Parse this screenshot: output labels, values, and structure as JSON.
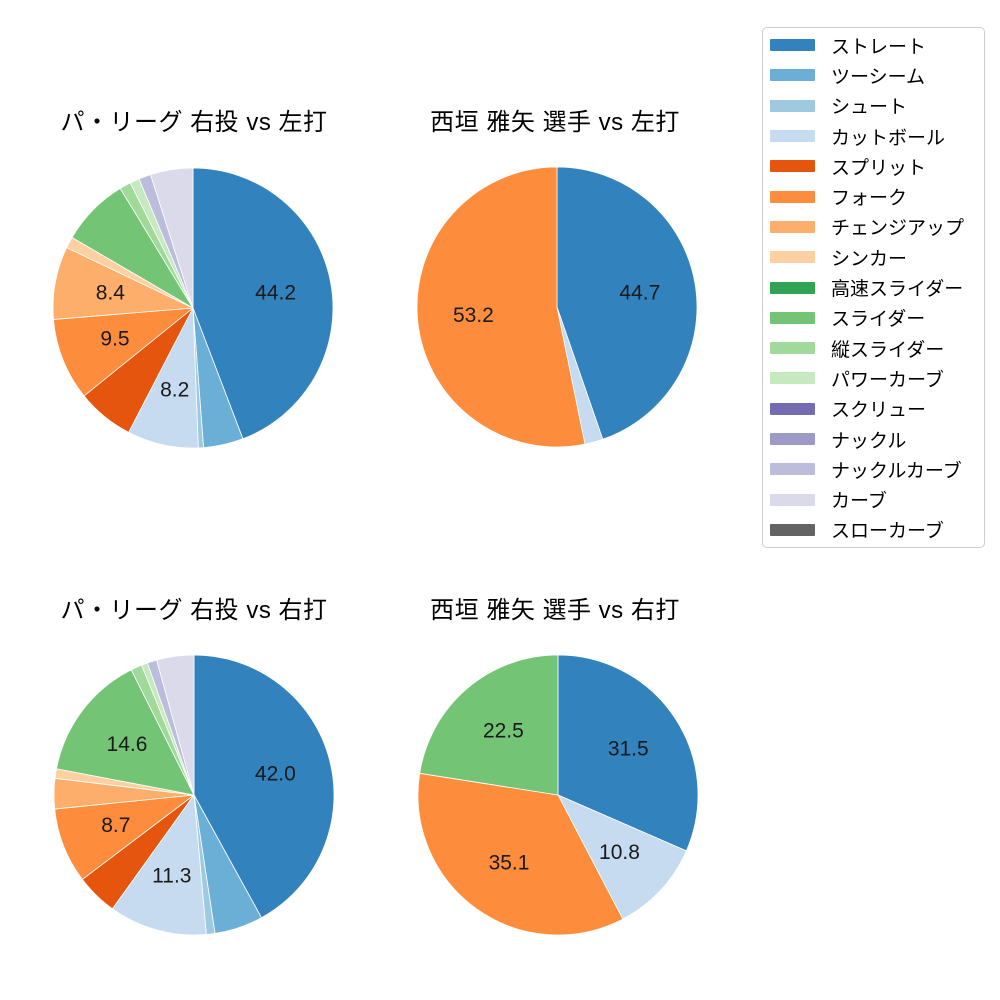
{
  "figure": {
    "background": "#ffffff",
    "title_color": "#000000",
    "pct_label_color": "#1a1a1a"
  },
  "legend": {
    "position": "upper-right-outside",
    "border_color": "#cccccc",
    "background": "#ffffff",
    "items": [
      {
        "label": "ストレート",
        "color": "#3182bd"
      },
      {
        "label": "ツーシーム",
        "color": "#6baed6"
      },
      {
        "label": "シュート",
        "color": "#9ecae1"
      },
      {
        "label": "カットボール",
        "color": "#c6dbef"
      },
      {
        "label": "スプリット",
        "color": "#e6550d"
      },
      {
        "label": "フォーク",
        "color": "#fd8d3c"
      },
      {
        "label": "チェンジアップ",
        "color": "#fdae6b"
      },
      {
        "label": "シンカー",
        "color": "#fdd0a2"
      },
      {
        "label": "高速スライダー",
        "color": "#31a354"
      },
      {
        "label": "スライダー",
        "color": "#74c476"
      },
      {
        "label": "縦スライダー",
        "color": "#a1d99b"
      },
      {
        "label": "パワーカーブ",
        "color": "#c7e9c0"
      },
      {
        "label": "スクリュー",
        "color": "#756bb1"
      },
      {
        "label": "ナックル",
        "color": "#9e9ac8"
      },
      {
        "label": "ナックルカーブ",
        "color": "#bcbddc"
      },
      {
        "label": "カーブ",
        "color": "#dadaeb"
      },
      {
        "label": "スローカーブ",
        "color": "#636363"
      }
    ]
  },
  "chart_data": [
    {
      "type": "pie",
      "title": "パ・リーグ 右投 vs 左打",
      "start_angle": "12-oclock",
      "direction": "clockwise",
      "label_threshold_pct": 8,
      "autopct_decimals": 1,
      "slices": [
        {
          "name": "ストレート",
          "value": 44.2
        },
        {
          "name": "ツーシーム",
          "value": 4.6
        },
        {
          "name": "シュート",
          "value": 0.6
        },
        {
          "name": "カットボール",
          "value": 8.2
        },
        {
          "name": "スプリット",
          "value": 6.6
        },
        {
          "name": "フォーク",
          "value": 9.5
        },
        {
          "name": "チェンジアップ",
          "value": 8.4
        },
        {
          "name": "シンカー",
          "value": 1.3
        },
        {
          "name": "スライダー",
          "value": 7.9
        },
        {
          "name": "縦スライダー",
          "value": 1.3
        },
        {
          "name": "パワーカーブ",
          "value": 1.1
        },
        {
          "name": "ナックルカーブ",
          "value": 1.4
        },
        {
          "name": "カーブ",
          "value": 4.9
        }
      ]
    },
    {
      "type": "pie",
      "title": "西垣 雅矢 選手 vs 左打",
      "start_angle": "12-oclock",
      "direction": "clockwise",
      "label_threshold_pct": 8,
      "autopct_decimals": 1,
      "slices": [
        {
          "name": "ストレート",
          "value": 44.7
        },
        {
          "name": "カットボール",
          "value": 2.1
        },
        {
          "name": "フォーク",
          "value": 53.2
        }
      ]
    },
    {
      "type": "pie",
      "title": "パ・リーグ 右投 vs 右打",
      "start_angle": "12-oclock",
      "direction": "clockwise",
      "label_threshold_pct": 8,
      "autopct_decimals": 1,
      "slices": [
        {
          "name": "ストレート",
          "value": 42.0
        },
        {
          "name": "ツーシーム",
          "value": 5.6
        },
        {
          "name": "シュート",
          "value": 1.0
        },
        {
          "name": "カットボール",
          "value": 11.3
        },
        {
          "name": "スプリット",
          "value": 4.8
        },
        {
          "name": "フォーク",
          "value": 8.7
        },
        {
          "name": "チェンジアップ",
          "value": 3.5
        },
        {
          "name": "シンカー",
          "value": 1.1
        },
        {
          "name": "スライダー",
          "value": 14.6
        },
        {
          "name": "縦スライダー",
          "value": 1.3
        },
        {
          "name": "パワーカーブ",
          "value": 0.7
        },
        {
          "name": "ナックルカーブ",
          "value": 1.1
        },
        {
          "name": "カーブ",
          "value": 4.3
        }
      ]
    },
    {
      "type": "pie",
      "title": "西垣 雅矢 選手 vs 右打",
      "start_angle": "12-oclock",
      "direction": "clockwise",
      "label_threshold_pct": 8,
      "autopct_decimals": 1,
      "slices": [
        {
          "name": "ストレート",
          "value": 31.5
        },
        {
          "name": "カットボール",
          "value": 10.8
        },
        {
          "name": "フォーク",
          "value": 35.1
        },
        {
          "name": "スライダー",
          "value": 22.5
        }
      ]
    }
  ]
}
